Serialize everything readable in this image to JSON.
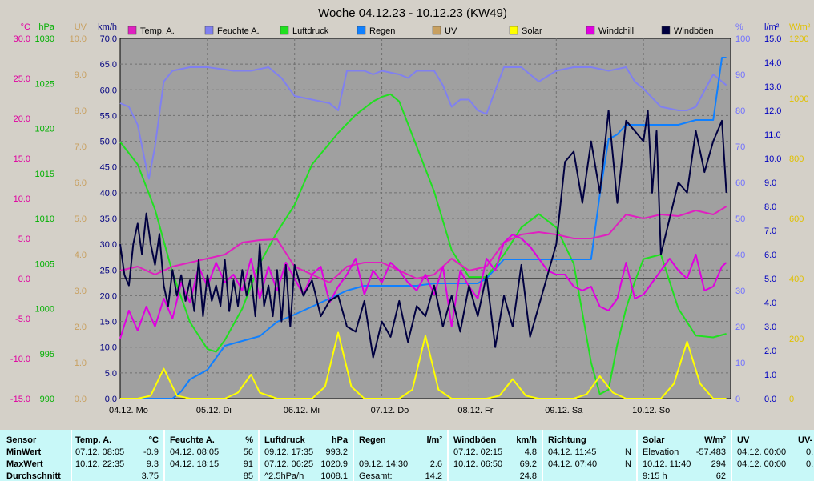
{
  "chart_data": {
    "type": "line",
    "title": "Woche 04.12.23 - 10.12.23 (KW49)",
    "x_labels": [
      "04.12.  Mo",
      "05.12.  Di",
      "06.12.  Mi",
      "07.12.  Do",
      "08.12.  Fr",
      "09.12.  Sa",
      "10.12.  So"
    ],
    "left_axes": [
      {
        "unit": "°C",
        "color": "#e000a0",
        "ticks": [
          "30.0",
          "25.0",
          "20.0",
          "15.0",
          "10.0",
          "5.0",
          "0.0",
          "-5.0",
          "-10.0",
          "-15.0"
        ]
      },
      {
        "unit": "hPa",
        "color": "#00b000",
        "ticks": [
          "1030",
          "1025",
          "1020",
          "1015",
          "1010",
          "1005",
          "1000",
          "995",
          "990"
        ]
      },
      {
        "unit": "UV",
        "color": "#c8a060",
        "ticks": [
          "10.0",
          "9.0",
          "8.0",
          "7.0",
          "6.0",
          "5.0",
          "4.0",
          "3.0",
          "2.0",
          "1.0",
          "0.0"
        ]
      },
      {
        "unit": "km/h",
        "color": "#000080",
        "ticks": [
          "70.0",
          "65.0",
          "60.0",
          "55.0",
          "50.0",
          "45.0",
          "40.0",
          "35.0",
          "30.0",
          "25.0",
          "20.0",
          "15.0",
          "10.0",
          "5.0",
          "0.0"
        ]
      }
    ],
    "right_axes": [
      {
        "unit": "%",
        "color": "#7070ff",
        "ticks": [
          "100",
          "90",
          "80",
          "70",
          "60",
          "50",
          "40",
          "30",
          "20",
          "10",
          "0"
        ]
      },
      {
        "unit": "l/m²",
        "color": "#0000c0",
        "ticks": [
          "15.0",
          "14.0",
          "13.0",
          "12.0",
          "11.0",
          "10.0",
          "9.0",
          "8.0",
          "7.0",
          "6.0",
          "5.0",
          "4.0",
          "3.0",
          "2.0",
          "1.0",
          "0.0"
        ]
      },
      {
        "unit": "W/m²",
        "color": "#e0c000",
        "ticks": [
          "1200",
          "1000",
          "800",
          "600",
          "400",
          "200",
          "0"
        ]
      }
    ],
    "legend": [
      {
        "name": "Temp. A.",
        "color": "#e020c0"
      },
      {
        "name": "Feuchte A.",
        "color": "#8080f0"
      },
      {
        "name": "Luftdruck",
        "color": "#20e020"
      },
      {
        "name": "Regen",
        "color": "#1080ff"
      },
      {
        "name": "UV",
        "color": "#c8a060"
      },
      {
        "name": "Solar",
        "color": "#ffff00"
      },
      {
        "name": "Windchill",
        "color": "#e000e0"
      },
      {
        "name": "Windböen",
        "color": "#000040"
      }
    ],
    "series": [
      {
        "name": "Feuchte A.",
        "axis": "%",
        "color": "#8080f0",
        "x": [
          0,
          0.1,
          0.2,
          0.3,
          0.33,
          0.4,
          0.5,
          0.6,
          0.8,
          1.0,
          1.3,
          1.5,
          1.7,
          1.85,
          2.0,
          2.2,
          2.4,
          2.5,
          2.6,
          2.8,
          2.9,
          3.0,
          3.2,
          3.3,
          3.4,
          3.6,
          3.7,
          3.8,
          3.9,
          4.0,
          4.1,
          4.2,
          4.4,
          4.6,
          4.8,
          5.0,
          5.2,
          5.4,
          5.6,
          5.8,
          5.9,
          6.0,
          6.2,
          6.4,
          6.5,
          6.6,
          6.8,
          6.95
        ],
        "y": [
          82,
          81,
          76,
          64,
          61,
          70,
          88,
          91,
          92,
          92,
          91,
          91,
          92,
          89,
          84,
          83,
          82,
          80,
          91,
          91,
          90,
          91,
          90,
          89,
          91,
          91,
          87,
          81,
          83,
          83,
          80,
          79,
          92,
          92,
          88,
          91,
          92,
          92,
          91,
          92,
          88,
          86,
          81,
          80,
          80,
          81,
          90,
          87
        ]
      },
      {
        "name": "Luftdruck",
        "axis": "hPa",
        "color": "#20e020",
        "x": [
          0,
          0.2,
          0.4,
          0.6,
          0.8,
          1.0,
          1.1,
          1.2,
          1.4,
          1.6,
          1.8,
          2.0,
          2.2,
          2.5,
          2.7,
          2.9,
          3.0,
          3.1,
          3.2,
          3.4,
          3.6,
          3.8,
          4.0,
          4.2,
          4.4,
          4.6,
          4.8,
          5.0,
          5.2,
          5.4,
          5.5,
          5.6,
          5.7,
          5.8,
          5.9,
          6.0,
          6.2,
          6.4,
          6.6,
          6.8,
          6.95
        ],
        "y": [
          1018.5,
          1016,
          1011,
          1004,
          998.5,
          995.5,
          995.2,
          996.5,
          1000,
          1005,
          1008.5,
          1011.5,
          1016,
          1019.5,
          1021.5,
          1023,
          1023.5,
          1023.8,
          1023,
          1018,
          1013,
          1006.5,
          1003.5,
          1003.5,
          1006,
          1009,
          1010.5,
          1009,
          1005,
          994,
          990.5,
          991,
          996,
          1000,
          1003,
          1005.5,
          1006,
          1000,
          997,
          996.8,
          997.2
        ]
      },
      {
        "name": "Regen",
        "axis": "l/m²",
        "color": "#1080ff",
        "x": [
          0,
          0.6,
          0.7,
          0.8,
          1.0,
          1.2,
          1.4,
          1.6,
          1.8,
          2.0,
          2.3,
          2.6,
          2.8,
          3.0,
          3.2,
          3.4,
          3.6,
          4.0,
          4.1,
          4.2,
          4.4,
          4.6,
          5.0,
          5.3,
          5.4,
          5.5,
          5.6,
          5.7,
          5.8,
          6.0,
          6.2,
          6.4,
          6.6,
          6.8,
          6.9,
          6.95
        ],
        "y": [
          0,
          0,
          0.3,
          0.8,
          1.2,
          2.2,
          2.4,
          2.6,
          3.2,
          3.5,
          4.0,
          4.5,
          4.7,
          4.7,
          4.7,
          4.7,
          4.8,
          4.8,
          4.8,
          5.0,
          5.8,
          5.8,
          5.8,
          5.8,
          5.8,
          8.5,
          10.8,
          11.0,
          11.4,
          11.4,
          11.4,
          11.4,
          11.6,
          11.6,
          14.2,
          14.2
        ]
      },
      {
        "name": "Solar",
        "axis": "W/m²",
        "color": "#ffff00",
        "x": [
          0,
          0.2,
          0.35,
          0.5,
          0.65,
          0.8,
          1.0,
          1.2,
          1.35,
          1.5,
          1.6,
          1.8,
          2.0,
          2.2,
          2.35,
          2.5,
          2.65,
          2.8,
          3.0,
          3.2,
          3.35,
          3.5,
          3.65,
          3.8,
          4.0,
          4.2,
          4.35,
          4.5,
          4.65,
          4.8,
          5.0,
          5.2,
          5.35,
          5.5,
          5.65,
          5.8,
          6.0,
          6.2,
          6.35,
          6.5,
          6.65,
          6.8,
          6.95
        ],
        "y": [
          0,
          0,
          10,
          100,
          10,
          0,
          0,
          0,
          20,
          80,
          20,
          0,
          0,
          0,
          40,
          220,
          40,
          0,
          0,
          0,
          30,
          210,
          30,
          0,
          0,
          0,
          10,
          65,
          10,
          0,
          0,
          0,
          15,
          75,
          20,
          0,
          0,
          0,
          50,
          190,
          50,
          0,
          0
        ]
      },
      {
        "name": "Temp. A.",
        "axis": "°C",
        "color": "#e020c0",
        "x": [
          0,
          0.2,
          0.4,
          0.6,
          0.8,
          1.0,
          1.2,
          1.4,
          1.6,
          1.8,
          2.0,
          2.2,
          2.4,
          2.6,
          2.8,
          3.0,
          3.2,
          3.4,
          3.6,
          3.8,
          4.0,
          4.2,
          4.4,
          4.6,
          4.8,
          5.0,
          5.2,
          5.4,
          5.6,
          5.8,
          6.0,
          6.2,
          6.4,
          6.6,
          6.8,
          6.95
        ],
        "y": [
          1.0,
          1.5,
          0.5,
          1.5,
          2.0,
          2.5,
          3.0,
          4.5,
          4.8,
          4.9,
          1.5,
          0.5,
          -0.5,
          1.5,
          2.0,
          2.0,
          1.0,
          0.0,
          0.5,
          2.5,
          1.0,
          1.5,
          4.5,
          5.5,
          5.8,
          5.5,
          5.0,
          5.0,
          5.5,
          8.0,
          7.5,
          8.0,
          7.8,
          8.5,
          8.0,
          9.0
        ]
      },
      {
        "name": "Windchill",
        "axis": "°C",
        "color": "#e000e0",
        "x": [
          0,
          0.1,
          0.2,
          0.3,
          0.4,
          0.5,
          0.6,
          0.7,
          0.8,
          0.9,
          1.0,
          1.1,
          1.2,
          1.3,
          1.4,
          1.5,
          1.6,
          1.7,
          1.8,
          1.9,
          2.0,
          2.1,
          2.2,
          2.3,
          2.4,
          2.5,
          2.6,
          2.7,
          2.8,
          2.9,
          3.0,
          3.1,
          3.2,
          3.3,
          3.4,
          3.5,
          3.6,
          3.7,
          3.8,
          3.9,
          4.0,
          4.1,
          4.2,
          4.3,
          4.4,
          4.5,
          4.6,
          4.7,
          4.8,
          4.9,
          5.0,
          5.1,
          5.2,
          5.3,
          5.4,
          5.5,
          5.6,
          5.7,
          5.8,
          5.9,
          6.0,
          6.1,
          6.2,
          6.3,
          6.4,
          6.5,
          6.6,
          6.7,
          6.8,
          6.9,
          6.95
        ],
        "y": [
          -7.5,
          -4.0,
          -6.5,
          -3.5,
          -6.0,
          -2.5,
          -5.0,
          -0.5,
          -3.0,
          1.5,
          -1.0,
          2.0,
          -0.5,
          0.5,
          -1.5,
          2.5,
          -2.5,
          1.5,
          -1.5,
          2.0,
          0.0,
          -2.0,
          0.5,
          1.5,
          -3.0,
          -1.0,
          0.5,
          2.5,
          -2.0,
          1.0,
          -0.5,
          2.0,
          1.0,
          -0.5,
          -1.5,
          0.5,
          -2.0,
          1.5,
          -6.0,
          1.0,
          -1.0,
          -2.5,
          2.5,
          1.0,
          4.5,
          5.5,
          5.0,
          4.0,
          2.5,
          1.0,
          0.5,
          0.5,
          -1.0,
          -1.5,
          -1.0,
          -3.5,
          -4.0,
          -2.5,
          2.0,
          -2.5,
          -2.0,
          -0.5,
          1.0,
          2.5,
          1.0,
          0.0,
          3.0,
          -1.5,
          -1.0,
          1.5,
          2.0
        ]
      },
      {
        "name": "Windböen",
        "axis": "km/h",
        "color": "#000040",
        "x": [
          0,
          0.05,
          0.1,
          0.15,
          0.2,
          0.25,
          0.3,
          0.35,
          0.4,
          0.45,
          0.5,
          0.55,
          0.6,
          0.65,
          0.7,
          0.75,
          0.8,
          0.85,
          0.9,
          0.95,
          1.0,
          1.05,
          1.1,
          1.15,
          1.2,
          1.25,
          1.3,
          1.35,
          1.4,
          1.45,
          1.5,
          1.55,
          1.6,
          1.65,
          1.7,
          1.75,
          1.8,
          1.85,
          1.9,
          1.95,
          2.0,
          2.1,
          2.2,
          2.3,
          2.4,
          2.5,
          2.6,
          2.7,
          2.8,
          2.9,
          3.0,
          3.1,
          3.2,
          3.3,
          3.4,
          3.5,
          3.6,
          3.7,
          3.8,
          3.9,
          4.0,
          4.1,
          4.2,
          4.3,
          4.4,
          4.5,
          4.6,
          4.7,
          4.8,
          4.9,
          5.0,
          5.1,
          5.2,
          5.3,
          5.4,
          5.5,
          5.6,
          5.7,
          5.8,
          5.9,
          6.0,
          6.05,
          6.1,
          6.15,
          6.2,
          6.3,
          6.4,
          6.5,
          6.6,
          6.7,
          6.8,
          6.9,
          6.95
        ],
        "y": [
          30,
          24,
          22,
          30,
          34,
          28,
          36,
          30,
          26,
          32,
          22,
          18,
          25,
          20,
          24,
          19,
          23,
          17,
          27,
          16,
          24,
          19,
          22,
          18,
          27,
          17,
          23,
          18,
          25,
          20,
          24,
          16,
          30,
          18,
          22,
          16,
          25,
          15,
          26,
          14,
          26,
          20,
          23,
          16,
          19,
          20,
          14,
          13,
          19,
          8,
          15,
          12,
          19,
          11,
          18,
          16,
          22,
          14,
          20,
          13,
          22,
          16,
          24,
          10,
          20,
          14,
          26,
          12,
          18,
          24,
          30,
          46,
          48,
          38,
          50,
          40,
          56,
          38,
          54,
          52,
          50,
          56,
          40,
          52,
          28,
          35,
          42,
          40,
          52,
          44,
          50,
          54,
          40
        ]
      }
    ]
  },
  "stats": {
    "headers": {
      "sensor": "Sensor",
      "temp": {
        "name": "Temp. A.",
        "unit": "°C"
      },
      "feuchte": {
        "name": "Feuchte A.",
        "unit": "%"
      },
      "luftdruck": {
        "name": "Luftdruck",
        "unit": "hPa"
      },
      "regen": {
        "name": "Regen",
        "unit": "l/m²"
      },
      "windboen": {
        "name": "Windböen",
        "unit": "km/h"
      },
      "richtung": {
        "name": "Richtung",
        "unit": ""
      },
      "solar": {
        "name": "Solar",
        "unit": "W/m²"
      },
      "uv": {
        "name": "UV",
        "unit": "UV-"
      }
    },
    "rows": {
      "min": {
        "label": "MinWert",
        "temp": {
          "when": "07.12.  08:05",
          "value": "-0.9"
        },
        "feuchte": {
          "when": "04.12.  08:05",
          "value": "56"
        },
        "luftdruck": {
          "when": "09.12.  17:35",
          "value": "993.2"
        },
        "regen": {
          "when": "",
          "value": ""
        },
        "windboen": {
          "when": "07.12.  02:15",
          "value": "4.8"
        },
        "richtung": {
          "when": "04.12.  11:45",
          "value": "N"
        },
        "solar": {
          "when": "Elevation",
          "value": "-57.483"
        },
        "uv": {
          "when": "04.12.  00:00",
          "value": "0."
        }
      },
      "max": {
        "label": "MaxWert",
        "temp": {
          "when": "10.12.  22:35",
          "value": "9.3"
        },
        "feuchte": {
          "when": "04.12.  18:15",
          "value": "91"
        },
        "luftdruck": {
          "when": "07.12.  06:25",
          "value": "1020.9"
        },
        "regen": {
          "when": "09.12.  14:30",
          "value": "2.6"
        },
        "windboen": {
          "when": "10.12.  06:50",
          "value": "69.2"
        },
        "richtung": {
          "when": "04.12.  07:40",
          "value": "N"
        },
        "solar": {
          "when": "10.12.  11:40",
          "value": "294"
        },
        "uv": {
          "when": "04.12.  00:00",
          "value": "0."
        }
      },
      "avg": {
        "label": "Durchschnitt",
        "temp": {
          "when": "",
          "value": "3.75"
        },
        "feuchte": {
          "when": "",
          "value": "85"
        },
        "luftdruck": {
          "when": "^2.5hPa/h",
          "value": "1008.1"
        },
        "regen": {
          "when": "Gesamt:",
          "value": "14.2"
        },
        "windboen": {
          "when": "",
          "value": "24.8"
        },
        "richtung": {
          "when": "",
          "value": ""
        },
        "solar": {
          "when": "9:15 h",
          "value": "62"
        },
        "uv": {
          "when": "",
          "value": ""
        }
      }
    }
  }
}
